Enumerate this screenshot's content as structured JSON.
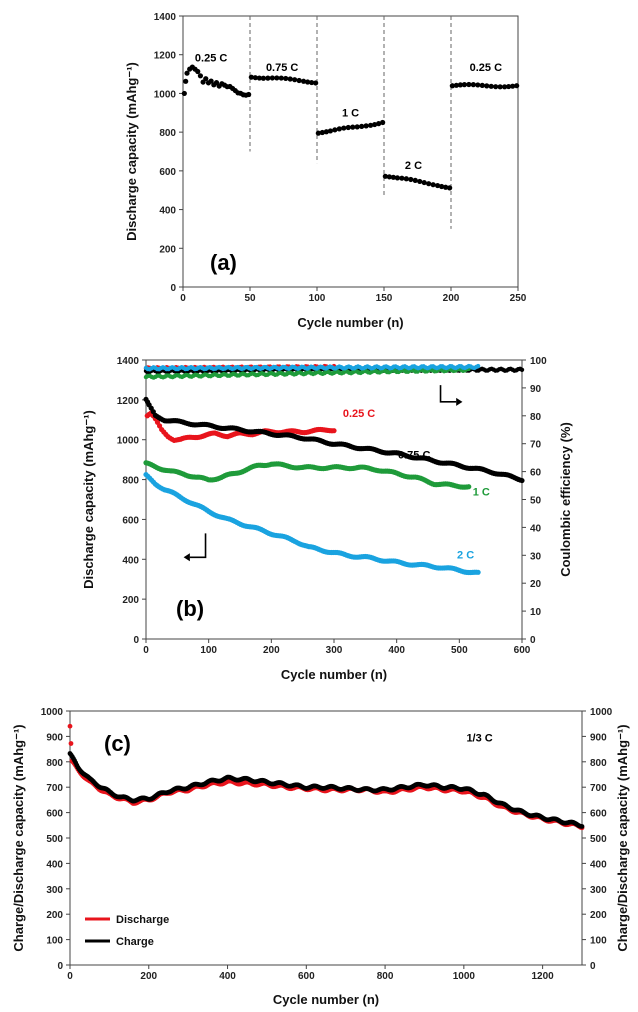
{
  "chart_data": [
    {
      "panel_label": "(a)",
      "type": "scatter",
      "xlabel": "Cycle number (n)",
      "ylabel": "Discharge capacity (mAhg⁻¹)",
      "xlim": [
        0,
        250
      ],
      "ylim": [
        0,
        1400
      ],
      "xticks": [
        0,
        50,
        100,
        150,
        200,
        250
      ],
      "yticks": [
        0,
        200,
        400,
        600,
        800,
        1000,
        1200,
        1400
      ],
      "grid": false,
      "rate_boundaries": [
        50,
        100,
        150,
        200
      ],
      "annotations": [
        {
          "text": "0.25 C",
          "x": 21,
          "y": 1165
        },
        {
          "text": "0.75 C",
          "x": 74,
          "y": 1115
        },
        {
          "text": "1 C",
          "x": 125,
          "y": 880
        },
        {
          "text": "2 C",
          "x": 172,
          "y": 610
        },
        {
          "text": "0.25 C",
          "x": 226,
          "y": 1115
        }
      ],
      "series": [
        {
          "color": "#000000",
          "points": [
            [
              1,
              1000
            ],
            [
              2,
              1060
            ],
            [
              3,
              1100
            ],
            [
              5,
              1120
            ],
            [
              7,
              1130
            ],
            [
              9,
              1120
            ],
            [
              11,
              1110
            ],
            [
              13,
              1090
            ],
            [
              15,
              1060
            ],
            [
              17,
              1080
            ],
            [
              19,
              1060
            ],
            [
              21,
              1070
            ],
            [
              23,
              1050
            ],
            [
              25,
              1060
            ],
            [
              27,
              1040
            ],
            [
              29,
              1050
            ],
            [
              31,
              1040
            ],
            [
              33,
              1030
            ],
            [
              35,
              1030
            ],
            [
              37,
              1020
            ],
            [
              39,
              1010
            ],
            [
              41,
              1000
            ],
            [
              43,
              1000
            ],
            [
              45,
              995
            ],
            [
              47,
              995
            ],
            [
              49,
              1000
            ],
            [
              51,
              1090
            ],
            [
              60,
              1080
            ],
            [
              70,
              1075
            ],
            [
              80,
              1070
            ],
            [
              90,
              1065
            ],
            [
              99,
              1060
            ],
            [
              101,
              800
            ],
            [
              110,
              805
            ],
            [
              120,
              815
            ],
            [
              130,
              825
            ],
            [
              140,
              840
            ],
            [
              149,
              855
            ],
            [
              151,
              575
            ],
            [
              160,
              560
            ],
            [
              170,
              550
            ],
            [
              180,
              540
            ],
            [
              190,
              530
            ],
            [
              199,
              515
            ],
            [
              201,
              1040
            ],
            [
              210,
              1040
            ],
            [
              220,
              1040
            ],
            [
              230,
              1040
            ],
            [
              240,
              1040
            ],
            [
              249,
              1040
            ]
          ]
        }
      ]
    },
    {
      "panel_label": "(b)",
      "type": "scatter",
      "xlabel": "Cycle number (n)",
      "ylabel": "Discharge capacity (mAhg⁻¹)",
      "y2label": "Coulombic efficiency (%)",
      "xlim": [
        0,
        600
      ],
      "ylim": [
        0,
        1400
      ],
      "y2lim": [
        0,
        100
      ],
      "xticks": [
        0,
        100,
        200,
        300,
        400,
        500,
        600
      ],
      "yticks": [
        0,
        200,
        400,
        600,
        800,
        1000,
        1200,
        1400
      ],
      "y2ticks": [
        0,
        10,
        20,
        30,
        40,
        50,
        60,
        70,
        80,
        90,
        100
      ],
      "grid": false,
      "annotations": [
        {
          "text": "0.25 C",
          "color": "#e8141c",
          "x": 340,
          "y": 1115
        },
        {
          "text": "0.75 C",
          "color": "#000000",
          "x": 428,
          "y": 905
        },
        {
          "text": "1 C",
          "color": "#1f9b3a",
          "x": 535,
          "y": 720
        },
        {
          "text": "2 C",
          "color": "#1aa3e0",
          "x": 510,
          "y": 405
        }
      ],
      "series": [
        {
          "name": "0.25 C",
          "color": "#e8141c",
          "capacity": [
            [
              2,
              1120
            ],
            [
              8,
              1130
            ],
            [
              15,
              1100
            ],
            [
              25,
              1050
            ],
            [
              35,
              1020
            ],
            [
              45,
              1000
            ],
            [
              55,
              1000
            ],
            [
              70,
              1010
            ],
            [
              90,
              1020
            ],
            [
              110,
              1030
            ],
            [
              130,
              1020
            ],
            [
              150,
              1030
            ],
            [
              170,
              1030
            ],
            [
              190,
              1040
            ],
            [
              210,
              1040
            ],
            [
              230,
              1040
            ],
            [
              250,
              1040
            ],
            [
              270,
              1045
            ],
            [
              290,
              1050
            ],
            [
              300,
              1050
            ]
          ],
          "ce": [
            [
              0,
              97
            ],
            [
              300,
              97.5
            ]
          ]
        },
        {
          "name": "0.75 C",
          "color": "#000000",
          "capacity": [
            [
              0,
              1200
            ],
            [
              5,
              1170
            ],
            [
              15,
              1120
            ],
            [
              30,
              1100
            ],
            [
              50,
              1090
            ],
            [
              75,
              1080
            ],
            [
              100,
              1070
            ],
            [
              150,
              1050
            ],
            [
              200,
              1030
            ],
            [
              250,
              1010
            ],
            [
              300,
              980
            ],
            [
              350,
              955
            ],
            [
              400,
              930
            ],
            [
              450,
              900
            ],
            [
              500,
              870
            ],
            [
              550,
              840
            ],
            [
              600,
              800
            ]
          ],
          "ce": [
            [
              0,
              96
            ],
            [
              100,
              96
            ],
            [
              200,
              96.5
            ],
            [
              300,
              96.5
            ],
            [
              400,
              96.5
            ],
            [
              500,
              96.5
            ],
            [
              600,
              96.5
            ]
          ]
        },
        {
          "name": "1 C",
          "color": "#1f9b3a",
          "capacity": [
            [
              0,
              880
            ],
            [
              20,
              860
            ],
            [
              40,
              840
            ],
            [
              60,
              830
            ],
            [
              80,
              810
            ],
            [
              100,
              800
            ],
            [
              120,
              810
            ],
            [
              140,
              830
            ],
            [
              160,
              850
            ],
            [
              180,
              870
            ],
            [
              200,
              880
            ],
            [
              220,
              870
            ],
            [
              250,
              860
            ],
            [
              280,
              860
            ],
            [
              310,
              860
            ],
            [
              340,
              860
            ],
            [
              370,
              850
            ],
            [
              400,
              830
            ],
            [
              430,
              810
            ],
            [
              460,
              780
            ],
            [
              490,
              770
            ],
            [
              515,
              765
            ]
          ],
          "ce": [
            [
              0,
              94
            ],
            [
              100,
              94.5
            ],
            [
              200,
              95
            ],
            [
              300,
              95.5
            ],
            [
              400,
              96
            ],
            [
              515,
              96.5
            ]
          ]
        },
        {
          "name": "2 C",
          "color": "#1aa3e0",
          "capacity": [
            [
              0,
              820
            ],
            [
              15,
              780
            ],
            [
              30,
              750
            ],
            [
              50,
              720
            ],
            [
              75,
              680
            ],
            [
              100,
              640
            ],
            [
              130,
              600
            ],
            [
              160,
              570
            ],
            [
              190,
              540
            ],
            [
              220,
              510
            ],
            [
              240,
              490
            ],
            [
              260,
              460
            ],
            [
              290,
              440
            ],
            [
              320,
              420
            ],
            [
              350,
              410
            ],
            [
              380,
              395
            ],
            [
              410,
              380
            ],
            [
              440,
              370
            ],
            [
              470,
              360
            ],
            [
              500,
              345
            ],
            [
              530,
              330
            ]
          ],
          "ce": [
            [
              0,
              97
            ],
            [
              530,
              97.5
            ]
          ]
        }
      ]
    },
    {
      "panel_label": "(c)",
      "type": "scatter",
      "xlabel": "Cycle number (n)",
      "ylabel": "Charge/Discharge capacity (mAhg⁻¹)",
      "y2label": "Charge/Discharge capacity (mAhg⁻¹)",
      "xlim": [
        0,
        1300
      ],
      "ylim": [
        0,
        1000
      ],
      "xticks": [
        0,
        200,
        400,
        600,
        800,
        1000,
        1200
      ],
      "yticks": [
        0,
        100,
        200,
        300,
        400,
        500,
        600,
        700,
        800,
        900,
        1000
      ],
      "grid": false,
      "legend_position": "bottom-left",
      "annotations": [
        {
          "text": "1/3 C",
          "x": 1040,
          "y": 880
        }
      ],
      "series": [
        {
          "name": "Discharge",
          "color": "#e8141c",
          "points": [
            [
              0,
              940
            ],
            [
              5,
              800
            ],
            [
              20,
              770
            ],
            [
              50,
              720
            ],
            [
              80,
              690
            ],
            [
              100,
              670
            ],
            [
              130,
              655
            ],
            [
              160,
              640
            ],
            [
              200,
              650
            ],
            [
              250,
              680
            ],
            [
              300,
              690
            ],
            [
              350,
              710
            ],
            [
              400,
              720
            ],
            [
              450,
              715
            ],
            [
              500,
              710
            ],
            [
              550,
              700
            ],
            [
              600,
              695
            ],
            [
              650,
              690
            ],
            [
              700,
              690
            ],
            [
              750,
              690
            ],
            [
              800,
              680
            ],
            [
              850,
              690
            ],
            [
              900,
              700
            ],
            [
              950,
              690
            ],
            [
              1000,
              685
            ],
            [
              1050,
              660
            ],
            [
              1100,
              620
            ],
            [
              1150,
              595
            ],
            [
              1200,
              575
            ],
            [
              1250,
              560
            ],
            [
              1300,
              545
            ]
          ]
        },
        {
          "name": "Charge",
          "color": "#000000",
          "points": [
            [
              0,
              830
            ],
            [
              20,
              780
            ],
            [
              50,
              730
            ],
            [
              80,
              700
            ],
            [
              100,
              680
            ],
            [
              130,
              660
            ],
            [
              160,
              650
            ],
            [
              200,
              655
            ],
            [
              250,
              685
            ],
            [
              300,
              700
            ],
            [
              350,
              720
            ],
            [
              400,
              735
            ],
            [
              450,
              730
            ],
            [
              500,
              720
            ],
            [
              550,
              710
            ],
            [
              600,
              700
            ],
            [
              650,
              700
            ],
            [
              700,
              695
            ],
            [
              750,
              690
            ],
            [
              800,
              690
            ],
            [
              850,
              700
            ],
            [
              900,
              710
            ],
            [
              950,
              700
            ],
            [
              1000,
              695
            ],
            [
              1050,
              670
            ],
            [
              1100,
              630
            ],
            [
              1150,
              600
            ],
            [
              1200,
              580
            ],
            [
              1250,
              565
            ],
            [
              1300,
              550
            ]
          ]
        }
      ]
    }
  ]
}
